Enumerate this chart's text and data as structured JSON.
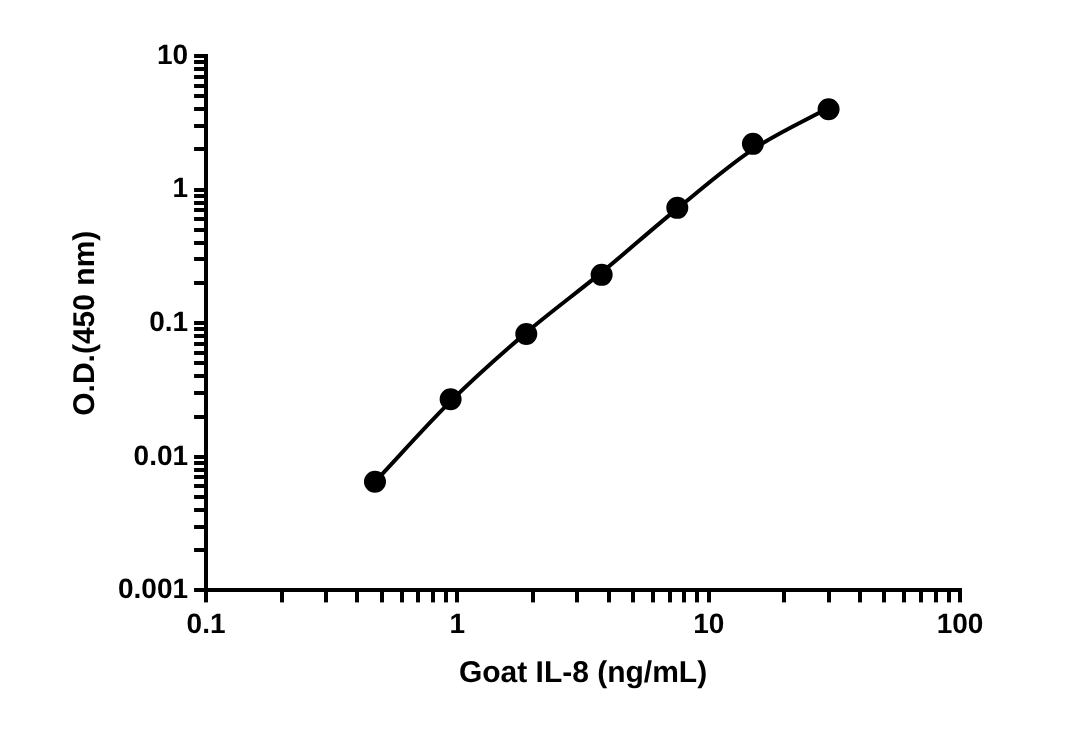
{
  "chart_data": {
    "type": "scatter",
    "xlabel": "Goat IL-8 (ng/mL)",
    "ylabel": "O.D.(450 nm)",
    "log": "xy",
    "marker": "circle",
    "grid": false,
    "legend": false,
    "xlim": [
      0.1,
      100
    ],
    "ylim": [
      0.001,
      10
    ],
    "xticks": [
      0.1,
      {
        "value": 0.2,
        "label": null
      },
      {
        "value": 0.3,
        "label": null
      },
      {
        "value": 0.4,
        "label": null
      },
      {
        "value": 0.5,
        "label": null
      },
      {
        "value": 0.6,
        "label": null
      },
      {
        "value": 0.7,
        "label": null
      },
      {
        "value": 0.8,
        "label": null
      },
      {
        "value": 0.9,
        "label": null
      },
      1,
      {
        "value": 2,
        "label": null
      },
      {
        "value": 3,
        "label": null
      },
      {
        "value": 4,
        "label": null
      },
      {
        "value": 5,
        "label": null
      },
      {
        "value": 6,
        "label": null
      },
      {
        "value": 7,
        "label": null
      },
      {
        "value": 8,
        "label": null
      },
      {
        "value": 9,
        "label": null
      },
      10,
      {
        "value": 20,
        "label": null
      },
      {
        "value": 30,
        "label": null
      },
      {
        "value": 40,
        "label": null
      },
      {
        "value": 50,
        "label": null
      },
      {
        "value": 60,
        "label": null
      },
      {
        "value": 70,
        "label": null
      },
      {
        "value": 80,
        "label": null
      },
      {
        "value": 90,
        "label": null
      },
      100
    ],
    "yticks": [
      0.001,
      {
        "value": 0.002,
        "label": null
      },
      {
        "value": 0.003,
        "label": null
      },
      {
        "value": 0.004,
        "label": null
      },
      {
        "value": 0.005,
        "label": null
      },
      {
        "value": 0.006,
        "label": null
      },
      {
        "value": 0.007,
        "label": null
      },
      {
        "value": 0.008,
        "label": null
      },
      {
        "value": 0.009,
        "label": null
      },
      0.01,
      {
        "value": 0.02,
        "label": null
      },
      {
        "value": 0.03,
        "label": null
      },
      {
        "value": 0.04,
        "label": null
      },
      {
        "value": 0.05,
        "label": null
      },
      {
        "value": 0.06,
        "label": null
      },
      {
        "value": 0.07,
        "label": null
      },
      {
        "value": 0.08,
        "label": null
      },
      {
        "value": 0.09,
        "label": null
      },
      0.1,
      {
        "value": 0.2,
        "label": null
      },
      {
        "value": 0.3,
        "label": null
      },
      {
        "value": 0.4,
        "label": null
      },
      {
        "value": 0.5,
        "label": null
      },
      {
        "value": 0.6,
        "label": null
      },
      {
        "value": 0.7,
        "label": null
      },
      {
        "value": 0.8,
        "label": null
      },
      {
        "value": 0.9,
        "label": null
      },
      1,
      {
        "value": 2,
        "label": null
      },
      {
        "value": 3,
        "label": null
      },
      {
        "value": 4,
        "label": null
      },
      {
        "value": 5,
        "label": null
      },
      {
        "value": 6,
        "label": null
      },
      {
        "value": 7,
        "label": null
      },
      {
        "value": 8,
        "label": null
      },
      {
        "value": 9,
        "label": null
      },
      10
    ],
    "series": [
      {
        "color": "#000000",
        "x": [
          0.47,
          0.94,
          1.88,
          3.75,
          7.5,
          15,
          30
        ],
        "values": [
          0.0065,
          0.027,
          0.083,
          0.23,
          0.73,
          2.2,
          4.0
        ]
      },
      {
        "type": "line",
        "color": "#000000",
        "marker": "none",
        "line_style": "solid",
        "x": [
          0.47,
          0.94,
          1.88,
          3.75,
          7.5,
          15,
          30
        ],
        "values": [
          0.0065,
          0.026,
          0.085,
          0.24,
          0.72,
          2.0,
          4.1
        ]
      }
    ]
  }
}
